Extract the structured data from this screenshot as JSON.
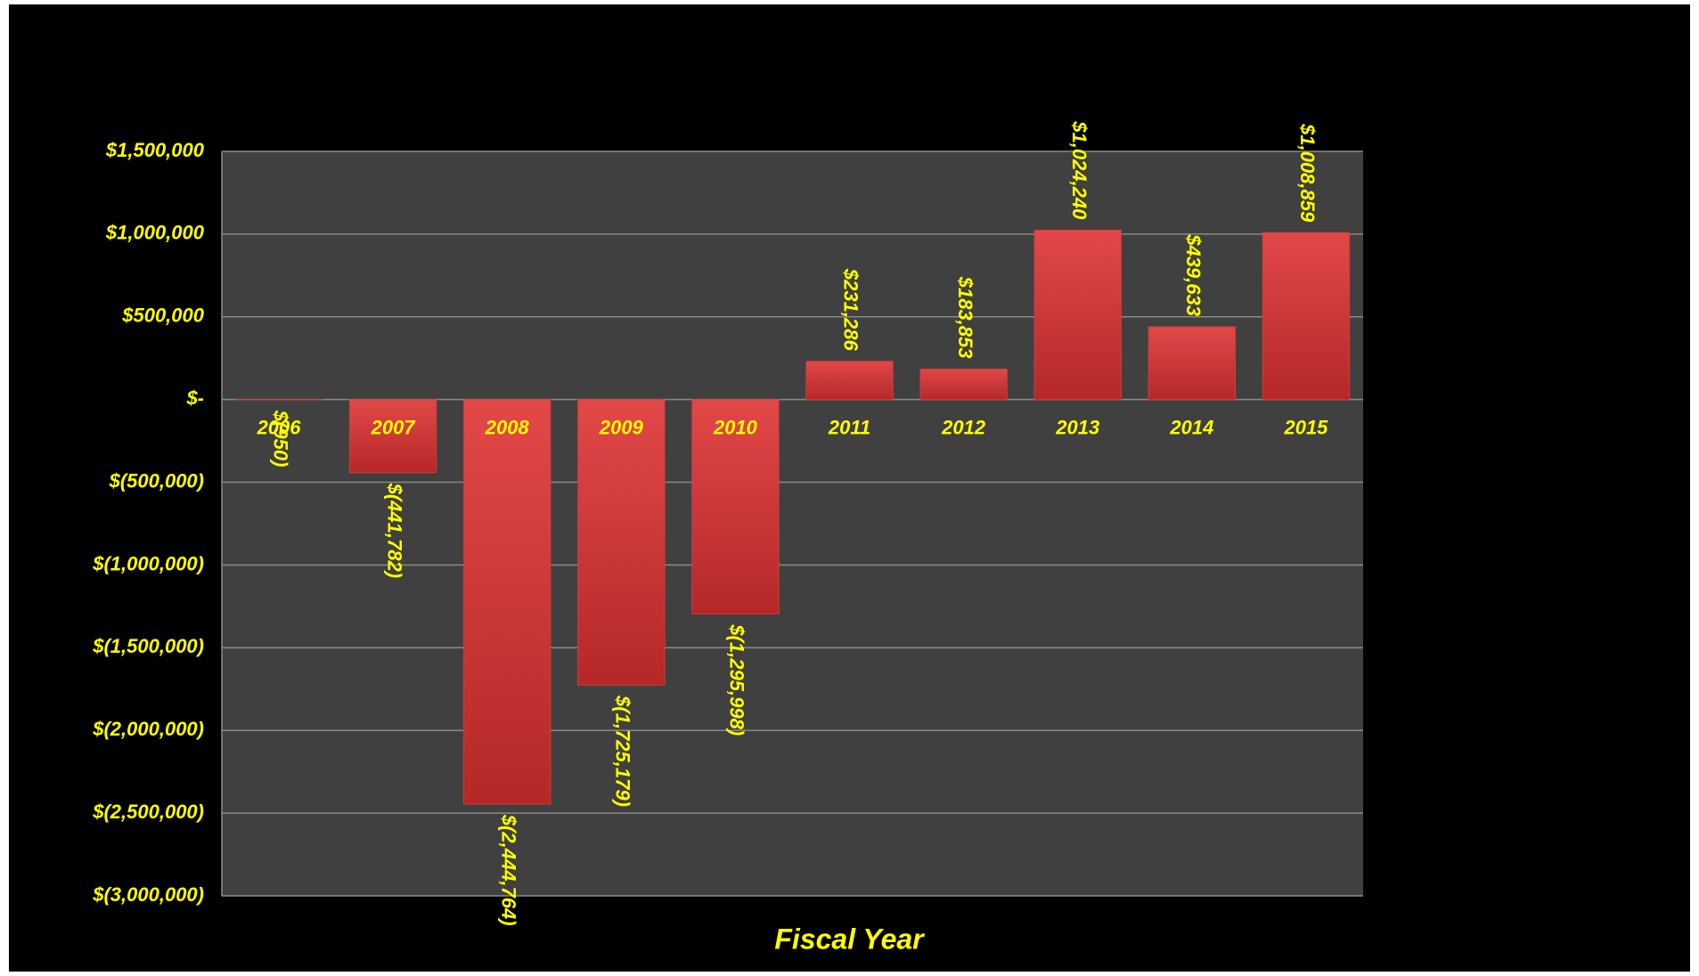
{
  "chart_data": {
    "type": "bar",
    "x_label": "Fiscal Year",
    "categories": [
      "2006",
      "2007",
      "2008",
      "2009",
      "2010",
      "2011",
      "2012",
      "2013",
      "2014",
      "2015"
    ],
    "values": [
      -950,
      -441782,
      -2444764,
      -1725179,
      -1295998,
      231286,
      183853,
      1024240,
      439633,
      1008859
    ],
    "value_labels": [
      "$(950)",
      "$(441,782)",
      "$(2,444,764)",
      "$(1,725,179)",
      "$(1,295,998)",
      "$231,286",
      "$183,853",
      "$1,024,240",
      "$439,633",
      "$1,008,859"
    ],
    "color": "#d63a3a",
    "ylim": [
      -3000000,
      1500000
    ],
    "yticks": [
      {
        "value": 1500000,
        "label": "$1,500,000"
      },
      {
        "value": 1000000,
        "label": "$1,000,000"
      },
      {
        "value": 500000,
        "label": "$500,000"
      },
      {
        "value": 0,
        "label": "$-"
      },
      {
        "value": -500000,
        "label": "$(500,000)"
      },
      {
        "value": -1000000,
        "label": "$(1,000,000)"
      },
      {
        "value": -1500000,
        "label": "$(1,500,000)"
      },
      {
        "value": -2000000,
        "label": "$(2,000,000)"
      },
      {
        "value": -2500000,
        "label": "$(2,500,000)"
      },
      {
        "value": -3000000,
        "label": "$(3,000,000)"
      }
    ],
    "grid": true
  }
}
